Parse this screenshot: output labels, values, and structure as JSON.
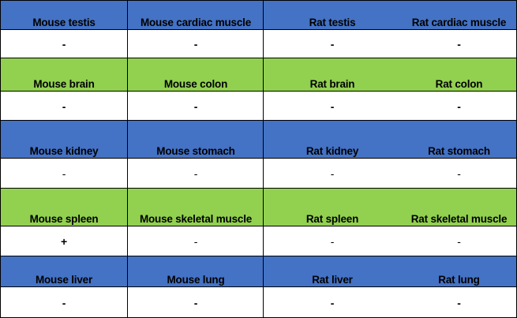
{
  "colors": {
    "blue_band": "#4472c4",
    "green_band": "#92d050",
    "value_band": "#ffffff"
  },
  "rows": [
    {
      "labels": [
        "Mouse testis",
        "Mouse cardiac muscle",
        "Rat testis",
        "Rat cardiac muscle"
      ],
      "values": [
        "-",
        "-",
        "-",
        "-"
      ]
    },
    {
      "labels": [
        "Mouse brain",
        "Mouse colon",
        "Rat brain",
        "Rat colon"
      ],
      "values": [
        "-",
        "-",
        "-",
        "-"
      ]
    },
    {
      "labels": [
        "Mouse kidney",
        "Mouse stomach",
        "Rat kidney",
        "Rat stomach"
      ],
      "values": [
        "-",
        "-",
        "-",
        "-"
      ]
    },
    {
      "labels": [
        "Mouse spleen",
        "Mouse skeletal muscle",
        "Rat spleen",
        "Rat skeletal muscle"
      ],
      "values": [
        "+",
        "-",
        "-",
        "-"
      ]
    },
    {
      "labels": [
        "Mouse liver",
        "Mouse lung",
        "Rat liver",
        "Rat lung"
      ],
      "values": [
        "-",
        "-",
        "-",
        "-"
      ]
    }
  ]
}
